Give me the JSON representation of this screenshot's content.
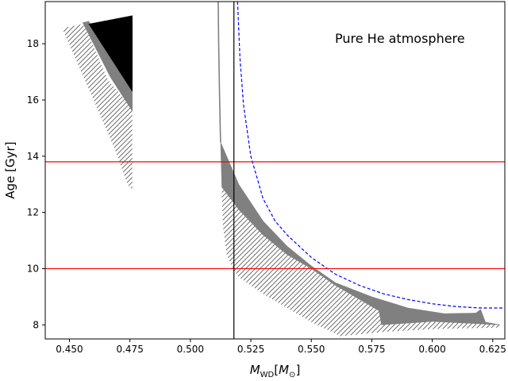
{
  "chart_data": {
    "type": "area",
    "xlabel": "M_WD[M_⊙]",
    "xlabel_main": "M",
    "xlabel_sub": "WD",
    "xlabel_bracket_open": "[",
    "xlabel_unit": "M",
    "xlabel_unit_sub": "⊙",
    "xlabel_bracket_close": "]",
    "ylabel": "Age [Gyr]",
    "xlim": [
      0.44,
      0.63
    ],
    "ylim": [
      7.5,
      19.5
    ],
    "xticks": [
      {
        "value": 0.45,
        "label": "0.450"
      },
      {
        "value": 0.475,
        "label": "0.475"
      },
      {
        "value": 0.5,
        "label": "0.500"
      },
      {
        "value": 0.525,
        "label": "0.525"
      },
      {
        "value": 0.55,
        "label": "0.550"
      },
      {
        "value": 0.575,
        "label": "0.575"
      },
      {
        "value": 0.6,
        "label": "0.600"
      },
      {
        "value": 0.625,
        "label": "0.625"
      }
    ],
    "yticks": [
      {
        "value": 8,
        "label": "8"
      },
      {
        "value": 10,
        "label": "10"
      },
      {
        "value": 12,
        "label": "12"
      },
      {
        "value": 14,
        "label": "14"
      },
      {
        "value": 16,
        "label": "16"
      },
      {
        "value": 18,
        "label": "18"
      }
    ],
    "annotation": "Pure He atmosphere",
    "grid": false,
    "hlines": [
      {
        "y": 13.8,
        "color": "#ff0000"
      },
      {
        "y": 10.0,
        "color": "#ff0000"
      }
    ],
    "vlines": [
      {
        "x": 0.518,
        "color": "#000000"
      }
    ],
    "regions": [
      {
        "id": "hatched-left",
        "style": "hatch",
        "color": "#555555",
        "polygon": [
          [
            0.447,
            18.55
          ],
          [
            0.4555,
            18.7
          ],
          [
            0.4575,
            18.4
          ],
          [
            0.466,
            16.7
          ],
          [
            0.476,
            15.7
          ],
          [
            0.476,
            12.8
          ],
          [
            0.474,
            13.0
          ],
          [
            0.469,
            14.2
          ],
          [
            0.46,
            16.0
          ]
        ]
      },
      {
        "id": "gray-left",
        "style": "fill",
        "color": "#808080",
        "polygon": [
          [
            0.4555,
            18.75
          ],
          [
            0.458,
            18.8
          ],
          [
            0.476,
            16.3
          ],
          [
            0.476,
            15.6
          ],
          [
            0.467,
            16.8
          ]
        ]
      },
      {
        "id": "black-left",
        "style": "fill",
        "color": "#000000",
        "polygon": [
          [
            0.458,
            18.7
          ],
          [
            0.476,
            19.0
          ],
          [
            0.476,
            16.3
          ]
        ]
      },
      {
        "id": "hatched-right",
        "style": "hatch",
        "color": "#555555",
        "polygon": [
          [
            0.513,
            12.9
          ],
          [
            0.52,
            12.1
          ],
          [
            0.53,
            11.2
          ],
          [
            0.54,
            10.5
          ],
          [
            0.55,
            10.0
          ],
          [
            0.56,
            9.4
          ],
          [
            0.57,
            8.9
          ],
          [
            0.578,
            8.5
          ],
          [
            0.579,
            8.05
          ],
          [
            0.6,
            8.15
          ],
          [
            0.62,
            8.05
          ],
          [
            0.628,
            8.0
          ],
          [
            0.628,
            7.9
          ],
          [
            0.6,
            7.85
          ],
          [
            0.58,
            7.75
          ],
          [
            0.562,
            7.6
          ],
          [
            0.55,
            8.1
          ],
          [
            0.54,
            8.6
          ],
          [
            0.53,
            9.1
          ],
          [
            0.52,
            9.7
          ],
          [
            0.5175,
            10.0
          ],
          [
            0.515,
            10.5
          ],
          [
            0.5135,
            11.5
          ],
          [
            0.513,
            12.5
          ]
        ]
      },
      {
        "id": "gray-right",
        "style": "fill",
        "color": "#808080",
        "polygon": [
          [
            0.5125,
            14.5
          ],
          [
            0.515,
            14.0
          ],
          [
            0.52,
            13.0
          ],
          [
            0.53,
            11.7
          ],
          [
            0.54,
            10.8
          ],
          [
            0.55,
            10.1
          ],
          [
            0.56,
            9.5
          ],
          [
            0.575,
            9.0
          ],
          [
            0.59,
            8.6
          ],
          [
            0.605,
            8.4
          ],
          [
            0.618,
            8.42
          ],
          [
            0.62,
            8.55
          ],
          [
            0.622,
            8.1
          ],
          [
            0.628,
            8.0
          ],
          [
            0.6,
            8.12
          ],
          [
            0.579,
            8.0
          ],
          [
            0.578,
            8.5
          ],
          [
            0.57,
            8.9
          ],
          [
            0.56,
            9.4
          ],
          [
            0.55,
            10.0
          ],
          [
            0.54,
            10.5
          ],
          [
            0.53,
            11.2
          ],
          [
            0.52,
            12.1
          ],
          [
            0.513,
            12.9
          ]
        ]
      }
    ],
    "series": [
      {
        "id": "gray-vertical-curve",
        "style": "solid",
        "color": "#808080",
        "x": [
          0.5115,
          0.5117,
          0.512,
          0.5123,
          0.5125
        ],
        "y": [
          19.5,
          18.0,
          16.5,
          15.2,
          14.5
        ]
      },
      {
        "id": "blue-dashed-curve",
        "style": "dashed",
        "color": "#0000ff",
        "x": [
          0.5195,
          0.5205,
          0.522,
          0.525,
          0.53,
          0.535,
          0.54,
          0.55,
          0.56,
          0.57,
          0.58,
          0.59,
          0.6,
          0.61,
          0.62,
          0.63
        ],
        "y": [
          19.5,
          17.5,
          15.8,
          14.0,
          12.5,
          11.7,
          11.2,
          10.4,
          9.8,
          9.4,
          9.1,
          8.9,
          8.75,
          8.65,
          8.6,
          8.6
        ]
      }
    ]
  }
}
